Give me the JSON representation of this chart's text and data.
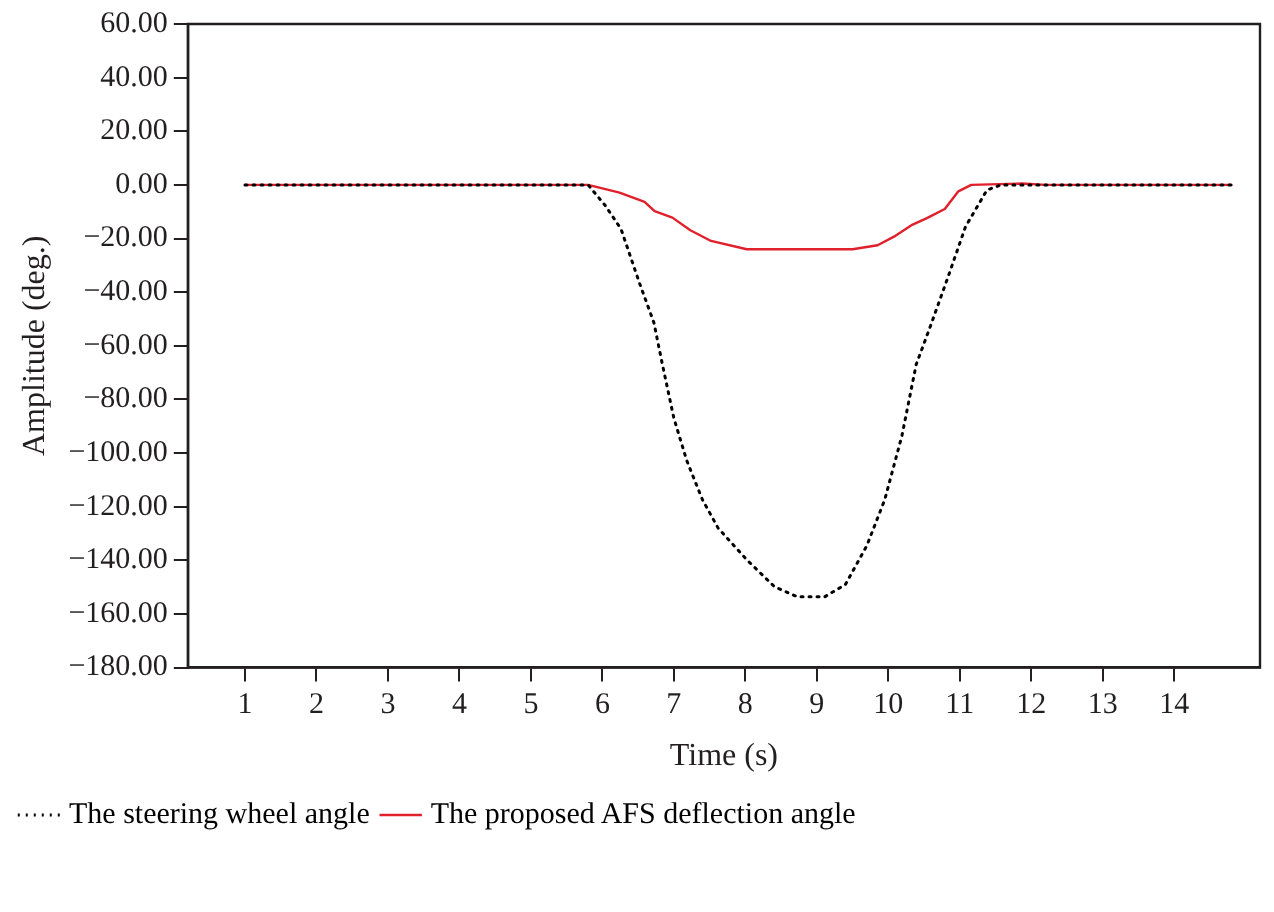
{
  "chart_data": {
    "type": "line",
    "xlabel": "Time (s)",
    "ylabel": "Amplitude (deg.)",
    "xlim": [
      0.2,
      15.2
    ],
    "xticks": [
      1,
      2,
      3,
      4,
      5,
      6,
      7,
      8,
      9,
      10,
      11,
      12,
      13,
      14
    ],
    "ylim": [
      -180,
      60
    ],
    "yticks": [
      {
        "value": 60,
        "label": "60.00"
      },
      {
        "value": 40,
        "label": "40.00"
      },
      {
        "value": 20,
        "label": "20.00"
      },
      {
        "value": 0,
        "label": "0.00"
      },
      {
        "value": -20,
        "label": "−20.00"
      },
      {
        "value": -40,
        "label": "−40.00"
      },
      {
        "value": -60,
        "label": "−60.00"
      },
      {
        "value": -80,
        "label": "−80.00"
      },
      {
        "value": -100,
        "label": "−100.00"
      },
      {
        "value": -120,
        "label": "−120.00"
      },
      {
        "value": -140,
        "label": "−140.00"
      },
      {
        "value": -160,
        "label": "−160.00"
      },
      {
        "value": -180,
        "label": "−180.00"
      }
    ],
    "grid": false,
    "legend": "bottom left",
    "marker": "none",
    "series": [
      {
        "name": "The steering wheel angle",
        "color": "#000000",
        "line_style": "dotted",
        "x": [
          1,
          5.8,
          6.04,
          6.26,
          6.52,
          6.72,
          6.84,
          7.0,
          7.18,
          7.4,
          7.62,
          8.02,
          8.41,
          8.73,
          9.11,
          9.4,
          9.7,
          9.95,
          10.19,
          10.39,
          10.59,
          10.84,
          11.08,
          11.38,
          11.58,
          14.8
        ],
        "values": [
          0,
          0,
          -7.7,
          -16.4,
          -36.7,
          -51.3,
          -67,
          -87,
          -102.8,
          -117.4,
          -128,
          -139.8,
          -149.9,
          -153.6,
          -153.6,
          -149,
          -134.5,
          -117.4,
          -93.6,
          -67,
          -52.6,
          -34,
          -15.6,
          -1.9,
          0,
          0
        ]
      },
      {
        "name": "The proposed AFS deflection angle",
        "color": "#e0202a",
        "line_style": "solid",
        "x": [
          1,
          5.8,
          6.24,
          6.59,
          6.73,
          6.98,
          7.23,
          7.52,
          8.02,
          9.5,
          9.85,
          10.1,
          10.34,
          10.54,
          10.79,
          10.98,
          11.16,
          11.87,
          12.2,
          14.8
        ],
        "values": [
          0,
          0,
          -2.9,
          -6.3,
          -9.8,
          -12.2,
          -16.9,
          -20.9,
          -24,
          -24,
          -22.5,
          -19,
          -14.8,
          -12.4,
          -9,
          -2.4,
          0,
          0.5,
          0,
          0
        ]
      }
    ]
  }
}
